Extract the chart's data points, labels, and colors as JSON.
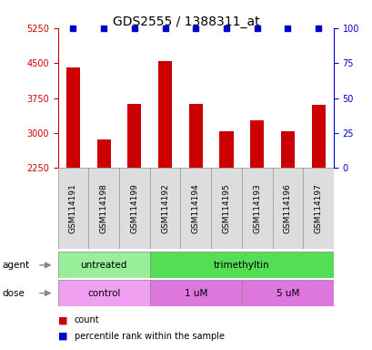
{
  "title": "GDS2555 / 1388311_at",
  "samples": [
    "GSM114191",
    "GSM114198",
    "GSM114199",
    "GSM114192",
    "GSM114194",
    "GSM114195",
    "GSM114193",
    "GSM114196",
    "GSM114197"
  ],
  "counts": [
    4400,
    2870,
    3620,
    4550,
    3620,
    3030,
    3280,
    3030,
    3600
  ],
  "percentile_ranks": [
    100,
    100,
    100,
    100,
    100,
    100,
    100,
    100,
    100
  ],
  "ylim_left": [
    2250,
    5250
  ],
  "yticks_left": [
    2250,
    3000,
    3750,
    4500,
    5250
  ],
  "grid_yticks": [
    3000,
    3750,
    4500
  ],
  "ylim_right": [
    0,
    100
  ],
  "yticks_right": [
    0,
    25,
    50,
    75,
    100
  ],
  "bar_color": "#cc0000",
  "dot_color": "#0000cc",
  "agent_labels": [
    {
      "text": "untreated",
      "start": 0,
      "end": 3,
      "color": "#99ee99"
    },
    {
      "text": "trimethyltin",
      "start": 3,
      "end": 9,
      "color": "#55dd55"
    }
  ],
  "dose_labels": [
    {
      "text": "control",
      "start": 0,
      "end": 3,
      "color": "#f0a0f0"
    },
    {
      "text": "1 uM",
      "start": 3,
      "end": 6,
      "color": "#dd77dd"
    },
    {
      "text": "5 uM",
      "start": 6,
      "end": 9,
      "color": "#dd77dd"
    }
  ],
  "row_label_agent": "agent",
  "row_label_dose": "dose",
  "legend_count_color": "#cc0000",
  "legend_dot_color": "#0000cc",
  "background_color": "#ffffff",
  "title_fontsize": 10,
  "tick_fontsize": 7,
  "sample_fontsize": 6.5,
  "row_fontsize": 7.5,
  "legend_fontsize": 7
}
